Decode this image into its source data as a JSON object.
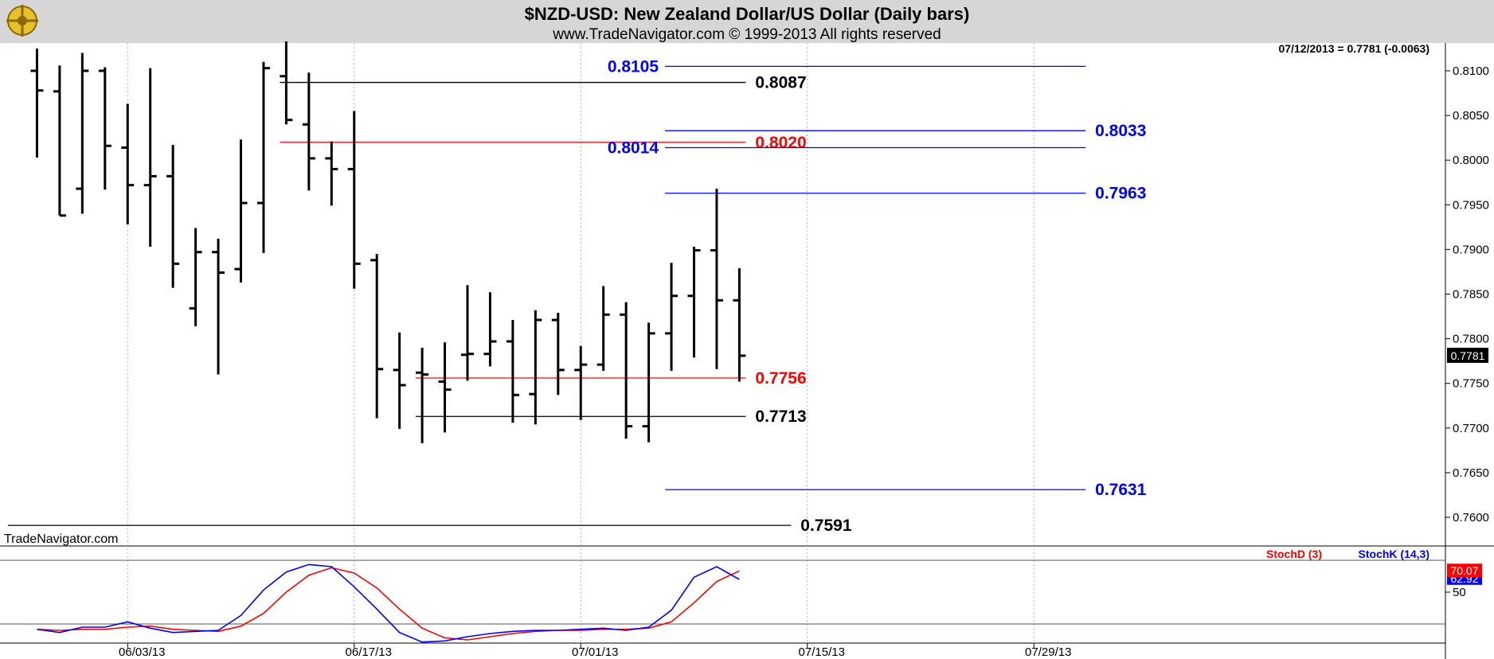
{
  "header": {
    "title": "$NZD-USD:  New Zealand Dollar/US Dollar  (Daily bars)",
    "copyright": "www.TradeNavigator.com © 1999-2013 All rights reserved",
    "last_quote": "07/12/2013 = 0.7781 (-0.0063)",
    "watermark": "TradeNavigator.com"
  },
  "colors": {
    "background": "#ffffff",
    "header_band": "#d6d6d6",
    "price_bar": "#000000",
    "blue_level": "#0000ff",
    "red_level": "#ff0000",
    "black_level": "#000000",
    "stoch_d": "#ff0000",
    "stoch_k": "#0000ff",
    "grid": "#b0b0b0"
  },
  "chart_data": [
    {
      "type": "ohlc",
      "title": "$NZD-USD:  New Zealand Dollar/US Dollar  (Daily bars)",
      "x_tick_labels": [
        "06/03/13",
        "06/17/13",
        "07/01/13",
        "07/15/13",
        "07/29/13"
      ],
      "y_tick_labels": [
        "0.8100",
        "0.8050",
        "0.8000",
        "0.7950",
        "0.7900",
        "0.7850",
        "0.7800",
        "0.7750",
        "0.7700",
        "0.7650",
        "0.7600"
      ],
      "ylim": [
        0.7575,
        0.813
      ],
      "grid": "vertical dotted",
      "last_price_label": "0.7781",
      "bars": [
        {
          "date": "05/28/13",
          "open": 0.81,
          "high": 0.8125,
          "low": 0.8003,
          "close": 0.8078
        },
        {
          "date": "05/29/13",
          "open": 0.8077,
          "high": 0.8106,
          "low": 0.7938,
          "close": 0.7938
        },
        {
          "date": "05/30/13",
          "open": 0.7968,
          "high": 0.812,
          "low": 0.794,
          "close": 0.81
        },
        {
          "date": "05/31/13",
          "open": 0.81,
          "high": 0.8104,
          "low": 0.7967,
          "close": 0.8016
        },
        {
          "date": "06/03/13",
          "open": 0.8014,
          "high": 0.8063,
          "low": 0.7928,
          "close": 0.7972
        },
        {
          "date": "06/04/13",
          "open": 0.7972,
          "high": 0.8103,
          "low": 0.7903,
          "close": 0.7982
        },
        {
          "date": "06/05/13",
          "open": 0.7982,
          "high": 0.8017,
          "low": 0.7857,
          "close": 0.7884
        },
        {
          "date": "06/06/13",
          "open": 0.7834,
          "high": 0.7924,
          "low": 0.7814,
          "close": 0.7897
        },
        {
          "date": "06/07/13",
          "open": 0.7897,
          "high": 0.7912,
          "low": 0.776,
          "close": 0.7874
        },
        {
          "date": "06/10/13",
          "open": 0.7878,
          "high": 0.8023,
          "low": 0.7863,
          "close": 0.7952
        },
        {
          "date": "06/11/13",
          "open": 0.7952,
          "high": 0.811,
          "low": 0.7896,
          "close": 0.8103
        },
        {
          "date": "06/12/13",
          "open": 0.8094,
          "high": 0.8133,
          "low": 0.804,
          "close": 0.8045
        },
        {
          "date": "06/13/13",
          "open": 0.804,
          "high": 0.8098,
          "low": 0.7966,
          "close": 0.8002
        },
        {
          "date": "06/14/13",
          "open": 0.8002,
          "high": 0.8021,
          "low": 0.7949,
          "close": 0.799
        },
        {
          "date": "06/17/13",
          "open": 0.799,
          "high": 0.8055,
          "low": 0.7856,
          "close": 0.7884
        },
        {
          "date": "06/18/13",
          "open": 0.7888,
          "high": 0.7895,
          "low": 0.7711,
          "close": 0.7766
        },
        {
          "date": "06/19/13",
          "open": 0.7765,
          "high": 0.7807,
          "low": 0.7699,
          "close": 0.7748
        },
        {
          "date": "06/20/13",
          "open": 0.7762,
          "high": 0.779,
          "low": 0.7683,
          "close": 0.776
        },
        {
          "date": "06/21/13",
          "open": 0.7752,
          "high": 0.7796,
          "low": 0.7695,
          "close": 0.7743
        },
        {
          "date": "06/24/13",
          "open": 0.7782,
          "high": 0.786,
          "low": 0.7753,
          "close": 0.7783
        },
        {
          "date": "06/25/13",
          "open": 0.7783,
          "high": 0.7852,
          "low": 0.7769,
          "close": 0.7797
        },
        {
          "date": "06/26/13",
          "open": 0.7797,
          "high": 0.7821,
          "low": 0.7706,
          "close": 0.7737
        },
        {
          "date": "06/27/13",
          "open": 0.7738,
          "high": 0.7832,
          "low": 0.7704,
          "close": 0.7821
        },
        {
          "date": "06/28/13",
          "open": 0.7821,
          "high": 0.7829,
          "low": 0.7737,
          "close": 0.7765
        },
        {
          "date": "07/01/13",
          "open": 0.7765,
          "high": 0.7792,
          "low": 0.7709,
          "close": 0.7771
        },
        {
          "date": "07/02/13",
          "open": 0.7771,
          "high": 0.7859,
          "low": 0.7764,
          "close": 0.7827
        },
        {
          "date": "07/03/13",
          "open": 0.7827,
          "high": 0.7841,
          "low": 0.7688,
          "close": 0.7702
        },
        {
          "date": "07/04/13",
          "open": 0.7702,
          "high": 0.7818,
          "low": 0.7684,
          "close": 0.7806
        },
        {
          "date": "07/05/13",
          "open": 0.7806,
          "high": 0.7885,
          "low": 0.7764,
          "close": 0.7848
        },
        {
          "date": "07/08/13",
          "open": 0.7848,
          "high": 0.7903,
          "low": 0.7779,
          "close": 0.7899
        },
        {
          "date": "07/09/13",
          "open": 0.7899,
          "high": 0.7968,
          "low": 0.7766,
          "close": 0.7843
        },
        {
          "date": "07/10/13",
          "open": 0.7843,
          "high": 0.7879,
          "low": 0.7752,
          "close": 0.7781
        }
      ],
      "levels": [
        {
          "label": "0.8105",
          "value": 0.8105,
          "color": "blue",
          "from_date": "07/05/13",
          "to_date": "07/31/13",
          "label_side": "left"
        },
        {
          "label": "0.8087",
          "value": 0.8087,
          "color": "black",
          "from_date": "06/12/13",
          "to_date": "07/10/13",
          "label_side": "right"
        },
        {
          "label": "0.8033",
          "value": 0.8033,
          "color": "blue",
          "from_date": "07/05/13",
          "to_date": "07/31/13",
          "label_side": "right"
        },
        {
          "label": "0.8020",
          "value": 0.802,
          "color": "red",
          "from_date": "06/12/13",
          "to_date": "07/10/13",
          "label_side": "right"
        },
        {
          "label": "0.8014",
          "value": 0.8014,
          "color": "blue",
          "from_date": "07/05/13",
          "to_date": "07/31/13",
          "label_side": "left"
        },
        {
          "label": "0.7963",
          "value": 0.7963,
          "color": "blue",
          "from_date": "07/05/13",
          "to_date": "07/31/13",
          "label_side": "right"
        },
        {
          "label": "0.7756",
          "value": 0.7756,
          "color": "red",
          "from_date": "06/20/13",
          "to_date": "07/10/13",
          "label_side": "right"
        },
        {
          "label": "0.7713",
          "value": 0.7713,
          "color": "black",
          "from_date": "06/20/13",
          "to_date": "07/10/13",
          "label_side": "right"
        },
        {
          "label": "0.7631",
          "value": 0.7631,
          "color": "blue",
          "from_date": "07/05/13",
          "to_date": "07/31/13",
          "label_side": "right"
        },
        {
          "label": "0.7591",
          "value": 0.7591,
          "color": "black",
          "from_date": "05/27/13",
          "to_date": "07/12/13",
          "label_side": "right"
        }
      ]
    },
    {
      "type": "line",
      "legend": [
        "StochD (3)",
        "StochK (14,3)"
      ],
      "y_tick_labels": [
        "50"
      ],
      "ylim": [
        -10,
        110
      ],
      "reference_lines": [
        80,
        20
      ],
      "last_values": {
        "StochD (3)": "70.07",
        "StochK (14,3)": "62.92"
      },
      "series": [
        {
          "name": "StochK (14,3)",
          "color": "blue",
          "values": [
            15,
            12,
            17,
            17,
            22,
            16,
            12,
            13,
            14,
            28,
            52,
            69,
            76,
            74,
            55,
            34,
            12,
            3,
            4,
            8,
            11,
            13,
            14,
            14,
            15,
            16,
            14,
            17,
            33,
            64,
            74,
            62
          ]
        },
        {
          "name": "StochD (3)",
          "color": "red",
          "values": [
            15,
            14,
            15,
            15,
            17,
            18,
            15,
            14,
            13,
            18,
            30,
            50,
            66,
            73,
            68,
            54,
            34,
            16,
            7,
            5,
            8,
            11,
            13,
            14,
            14,
            15,
            15,
            16,
            22,
            40,
            60,
            70
          ]
        }
      ]
    }
  ]
}
